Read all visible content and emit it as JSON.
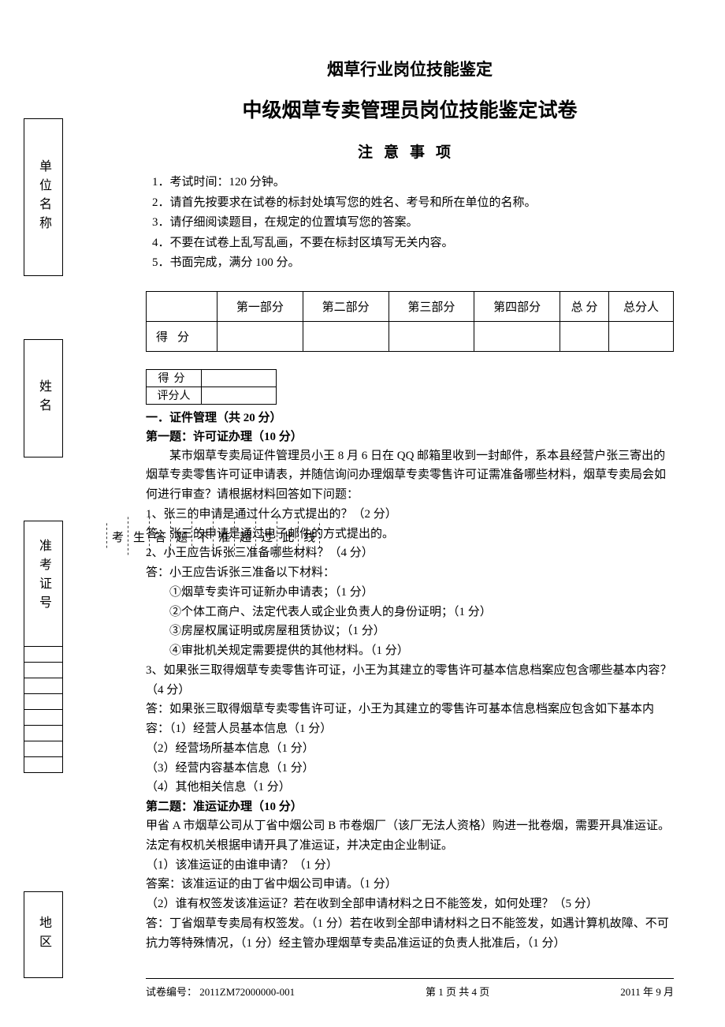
{
  "sidebar": {
    "unit": "单位名称",
    "name": "姓名",
    "examno": "准考证号",
    "region": "地区"
  },
  "dashed": {
    "chars": [
      "线",
      "此",
      "过",
      "超",
      "准",
      "不",
      "题",
      "答",
      "生",
      "考"
    ]
  },
  "header": {
    "title1": "烟草行业岗位技能鉴定",
    "title2": "中级烟草专卖管理员岗位技能鉴定试卷",
    "notice_title": "注意事项",
    "notices": [
      "1．考试时间：120 分钟。",
      "2．请首先按要求在试卷的标封处填写您的姓名、考号和所在单位的名称。",
      "3．请仔细阅读题目，在规定的位置填写您的答案。",
      "4．不要在试卷上乱写乱画，不要在标封区填写无关内容。",
      "5．书面完成，满分 100 分。"
    ]
  },
  "score_table": {
    "headers": [
      "第一部分",
      "第二部分",
      "第三部分",
      "第四部分",
      "总 分",
      "总分人"
    ],
    "row_label": "得分"
  },
  "mini": {
    "row1": "得分",
    "row2": "评分人"
  },
  "content": {
    "sec1": "一．证件管理（共 20 分）",
    "q1_title": "第一题：许可证办理（10 分）",
    "q1_intro": "某市烟草专卖局证件管理员小王 8 月 6 日在 QQ 邮箱里收到一封邮件，系本县经营户张三寄出的烟草专卖零售许可证申请表，并随信询问办理烟草专卖零售许可证需准备哪些材料，烟草专卖局会如何进行审查？请根据材料回答如下问题：",
    "q1_1": "1、张三的申请是通过什么方式提出的？（2 分）",
    "q1_1a": "答：张三的申请是通过电子邮件的方式提出的。",
    "q1_2": "2、小王应告诉张三准备哪些材料？（4 分）",
    "q1_2a": "答：小王应告诉张三准备以下材料：",
    "q1_2_items": [
      "①烟草专卖许可证新办申请表；（1 分）",
      "②个体工商户、法定代表人或企业负责人的身份证明；（1 分）",
      "③房屋权属证明或房屋租赁协议；（1 分）",
      "④审批机关规定需要提供的其他材料。（1 分）"
    ],
    "q1_3": "3、如果张三取得烟草专卖零售许可证，小王为其建立的零售许可基本信息档案应包含哪些基本内容？（4 分）",
    "q1_3a": "答：如果张三取得烟草专卖零售许可证，小王为其建立的零售许可基本信息档案应包含如下基本内容：（1）经营人员基本信息（1 分）",
    "q1_3_items": [
      "（2）经营场所基本信息（1 分）",
      "（3）经营内容基本信息（1 分）",
      "（4）其他相关信息（1 分）"
    ],
    "q2_title": "第二题：准运证办理（10 分）",
    "q2_intro": "甲省 A 市烟草公司从丁省中烟公司 B 市卷烟厂（该厂无法人资格）购进一批卷烟，需要开具准运证。法定有权机关根据申请开具了准运证，并决定由企业制证。",
    "q2_1": "（1）该准运证的由谁申请？（1 分）",
    "q2_1a": "答案：该准运证的由丁省中烟公司申请。（1 分）",
    "q2_2": "（2）谁有权签发该准运证？若在收到全部申请材料之日不能签发，如何处理？（5 分）",
    "q2_2a": "答：丁省烟草专卖局有权签发。（1 分）若在收到全部申请材料之日不能签发，如遇计算机故障、不可抗力等特殊情况，（1 分）经主管办理烟草专卖品准运证的负责人批准后，（1 分）"
  },
  "footer": {
    "left": "试卷编号： 2011ZM72000000-001",
    "center": "第 1 页 共 4 页",
    "right": "2011 年 9 月"
  }
}
